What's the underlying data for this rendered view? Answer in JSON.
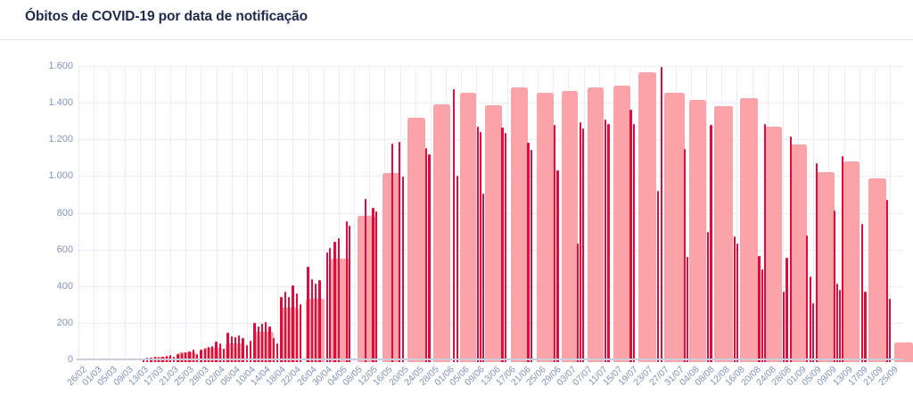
{
  "header": {
    "title": "Óbitos de COVID-19 por data de notificação"
  },
  "chart_data": {
    "type": "bar",
    "title": "Óbitos de COVID-19 por data de notificação",
    "xlabel": "",
    "ylabel": "",
    "ylim": [
      0,
      1600
    ],
    "grid": true,
    "legend": false,
    "y_ticks": [
      {
        "value": 0,
        "label": "0"
      },
      {
        "value": 200,
        "label": "200"
      },
      {
        "value": 400,
        "label": "400"
      },
      {
        "value": 600,
        "label": "600"
      },
      {
        "value": 800,
        "label": "800"
      },
      {
        "value": 1000,
        "label": "1.000"
      },
      {
        "value": 1200,
        "label": "1.200"
      },
      {
        "value": 1400,
        "label": "1.400"
      },
      {
        "value": 1600,
        "label": "1.600"
      }
    ],
    "x_tick_step_days": 4,
    "x_ticks": [
      "26/02",
      "01/03",
      "05/03",
      "09/03",
      "13/03",
      "17/03",
      "21/03",
      "25/03",
      "29/03",
      "02/04",
      "06/04",
      "10/04",
      "14/04",
      "18/04",
      "22/04",
      "26/04",
      "30/04",
      "04/05",
      "08/05",
      "12/05",
      "16/05",
      "20/05",
      "24/05",
      "28/05",
      "01/06",
      "05/06",
      "09/06",
      "13/06",
      "17/06",
      "21/06",
      "25/06",
      "29/06",
      "03/07",
      "07/07",
      "11/07",
      "15/07",
      "19/07",
      "23/07",
      "27/07",
      "31/07",
      "04/08",
      "08/08",
      "12/08",
      "16/08",
      "20/08",
      "24/08",
      "28/08",
      "01/09",
      "05/09",
      "09/09",
      "13/09",
      "17/09",
      "21/09",
      "25/09"
    ],
    "colors": {
      "weekly": "#faa4aa",
      "daily": "#e20b3e",
      "grid": "#e9edf8",
      "axis_labels": "#8294b8",
      "axis_line": "#c9cedb",
      "title": "#1f2a4b"
    },
    "series": [
      {
        "name": "weekly",
        "role": "weekly-block",
        "color": "#faa4aa",
        "bars_format": [
          "start_day",
          "span_days",
          "value"
        ],
        "bars": [
          [
            19.5,
            4.5,
            15
          ],
          [
            26,
            4.7,
            38
          ],
          [
            32.5,
            5,
            62
          ],
          [
            38.5,
            4.4,
            88
          ],
          [
            46,
            5,
            150
          ],
          [
            52.6,
            4.9,
            280
          ],
          [
            59.4,
            4.9,
            331
          ],
          [
            66,
            4.9,
            550
          ],
          [
            73,
            4.5,
            783
          ],
          [
            79.4,
            4.5,
            1016
          ],
          [
            86,
            4.7,
            1318
          ],
          [
            92.6,
            4.5,
            1391
          ],
          [
            99.6,
            4.3,
            1453
          ],
          [
            106.2,
            4.4,
            1386
          ],
          [
            113,
            4.4,
            1483
          ],
          [
            119.7,
            4.4,
            1453
          ],
          [
            126.2,
            4.2,
            1465
          ],
          [
            133,
            4.2,
            1483
          ],
          [
            139.7,
            4.4,
            1493
          ],
          [
            146.3,
            4.7,
            1566
          ],
          [
            153,
            5.3,
            1453
          ],
          [
            159.6,
            4.4,
            1415
          ],
          [
            166.1,
            4.9,
            1381
          ],
          [
            172.9,
            4.6,
            1425
          ],
          [
            179.2,
            4.6,
            1270
          ],
          [
            185.9,
            4.4,
            1172
          ],
          [
            192.9,
            4.6,
            1021
          ],
          [
            199.6,
            4.6,
            1080
          ],
          [
            206.5,
            4.6,
            987
          ],
          [
            213.2,
            4.8,
            95
          ]
        ]
      },
      {
        "name": "daily",
        "role": "daily-bar",
        "color": "#e20b3e",
        "bars_format": [
          "day",
          "value"
        ],
        "bars": [
          [
            17,
            5
          ],
          [
            18,
            8
          ],
          [
            19,
            10
          ],
          [
            20,
            14
          ],
          [
            21,
            10
          ],
          [
            22,
            16
          ],
          [
            23,
            18
          ],
          [
            24,
            25
          ],
          [
            25,
            16
          ],
          [
            26,
            30
          ],
          [
            27,
            34
          ],
          [
            28,
            40
          ],
          [
            29,
            46
          ],
          [
            30,
            55
          ],
          [
            31,
            30
          ],
          [
            32,
            52
          ],
          [
            33,
            58
          ],
          [
            34,
            68
          ],
          [
            35,
            74
          ],
          [
            36,
            96
          ],
          [
            37,
            86
          ],
          [
            38,
            60
          ],
          [
            39,
            146
          ],
          [
            40,
            128
          ],
          [
            41,
            122
          ],
          [
            42,
            133
          ],
          [
            43,
            118
          ],
          [
            44,
            76
          ],
          [
            45,
            100
          ],
          [
            46,
            200
          ],
          [
            47,
            182
          ],
          [
            48,
            194
          ],
          [
            49,
            204
          ],
          [
            50,
            180
          ],
          [
            51,
            117
          ],
          [
            52,
            90
          ],
          [
            53,
            340
          ],
          [
            54,
            372
          ],
          [
            55,
            342
          ],
          [
            56,
            405
          ],
          [
            57,
            360
          ],
          [
            58,
            300
          ],
          [
            60,
            506
          ],
          [
            61,
            440
          ],
          [
            62,
            416
          ],
          [
            63,
            432
          ],
          [
            65,
            585
          ],
          [
            65.7,
            608
          ],
          [
            67,
            640
          ],
          [
            68,
            660
          ],
          [
            70.2,
            754
          ],
          [
            70.9,
            729
          ],
          [
            75,
            875
          ],
          [
            77,
            827
          ],
          [
            77.8,
            807
          ],
          [
            82,
            1177
          ],
          [
            83.8,
            1186
          ],
          [
            84.8,
            997
          ],
          [
            90.8,
            1152
          ],
          [
            91.7,
            1118
          ],
          [
            98.1,
            1474
          ],
          [
            99,
            1002
          ],
          [
            104.3,
            1270
          ],
          [
            105,
            1240
          ],
          [
            105.7,
            905
          ],
          [
            110.8,
            1265
          ],
          [
            111.6,
            1235
          ],
          [
            117.5,
            1182
          ],
          [
            118.3,
            1141
          ],
          [
            124.4,
            1279
          ],
          [
            125.2,
            1031
          ],
          [
            130.5,
            632
          ],
          [
            131.1,
            1294
          ],
          [
            131.8,
            1260
          ],
          [
            137.7,
            1308
          ],
          [
            138.5,
            1284
          ],
          [
            144.3,
            1362
          ],
          [
            145.1,
            1284
          ],
          [
            151.5,
            919
          ],
          [
            152.4,
            1595
          ],
          [
            158.4,
            1147
          ],
          [
            159.1,
            558
          ],
          [
            164.4,
            695
          ],
          [
            165.3,
            1279
          ],
          [
            171.4,
            671
          ],
          [
            172.1,
            632
          ],
          [
            177.9,
            564
          ],
          [
            178.7,
            491
          ],
          [
            179.4,
            1285
          ],
          [
            184.3,
            372
          ],
          [
            185.1,
            554
          ],
          [
            186.2,
            1216
          ],
          [
            190.4,
            676
          ],
          [
            191.2,
            452
          ],
          [
            191.9,
            306
          ],
          [
            192.9,
            1070
          ],
          [
            197.5,
            812
          ],
          [
            198.3,
            413
          ],
          [
            199,
            379
          ],
          [
            199.7,
            1109
          ],
          [
            204.8,
            739
          ],
          [
            205.6,
            370
          ],
          [
            211.3,
            870
          ],
          [
            212,
            331
          ]
        ]
      }
    ]
  }
}
